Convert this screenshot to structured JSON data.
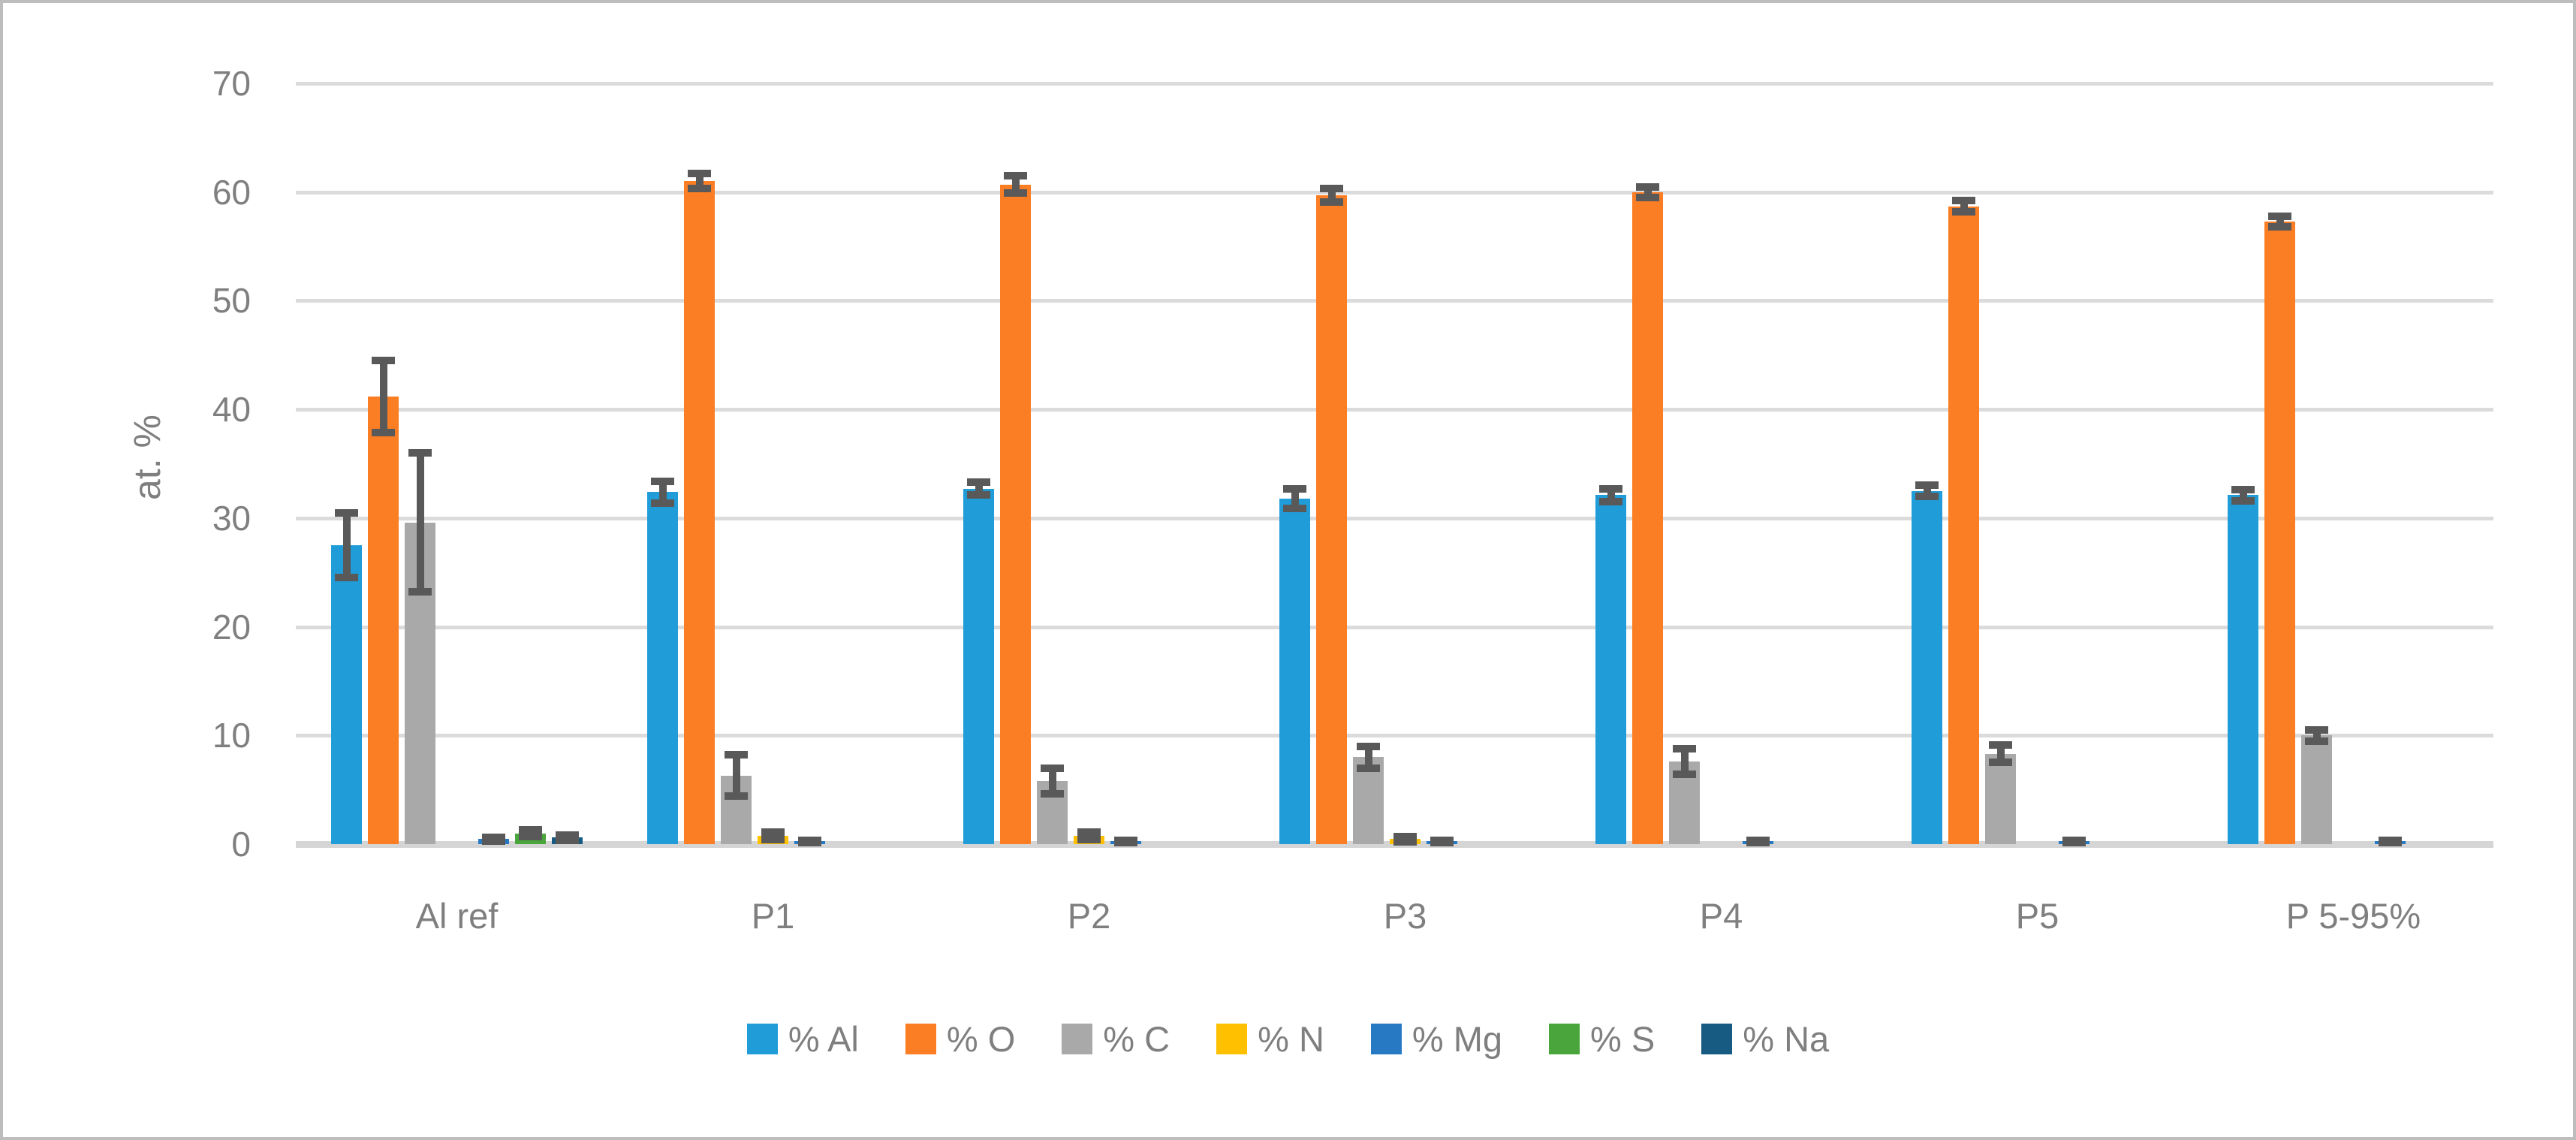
{
  "figure": {
    "background_color": "#FFFFFF",
    "border_color": "#BDBDBD"
  },
  "chart_data": {
    "type": "bar",
    "title": "",
    "xlabel": "",
    "ylabel": "at. %",
    "ylim": [
      0,
      70
    ],
    "yticks": [
      0,
      10,
      20,
      30,
      40,
      50,
      60,
      70
    ],
    "grid": true,
    "legend_position": "bottom",
    "axis_text_color": "#7F7F7F",
    "gridline_color": "#DBDBDB",
    "baseline_color": "#D5D5D5",
    "error_bar_color": "#595959",
    "categories": [
      "Al ref",
      "P1",
      "P2",
      "P3",
      "P4",
      "P5",
      "P 5-95%"
    ],
    "series": [
      {
        "name": "% Al",
        "color": "#209CD8",
        "values": [
          27.5,
          32.4,
          32.7,
          31.8,
          32.1,
          32.5,
          32.1
        ],
        "errors": [
          3.0,
          1.0,
          0.6,
          0.9,
          0.6,
          0.5,
          0.5
        ]
      },
      {
        "name": "% O",
        "color": "#FB7D24",
        "values": [
          41.2,
          61.0,
          60.7,
          59.7,
          60.0,
          58.7,
          57.3
        ],
        "errors": [
          3.3,
          0.7,
          0.8,
          0.6,
          0.5,
          0.5,
          0.5
        ]
      },
      {
        "name": "% C",
        "color": "#A9A9A9",
        "values": [
          29.6,
          6.3,
          5.8,
          8.0,
          7.6,
          8.3,
          10.0
        ],
        "errors": [
          6.4,
          1.9,
          1.2,
          1.0,
          1.2,
          0.8,
          0.5
        ]
      },
      {
        "name": "% N",
        "color": "#FFC000",
        "values": [
          0,
          0.75,
          0.75,
          0.45,
          0,
          0,
          0
        ],
        "errors": [
          0,
          0.35,
          0.35,
          0.25,
          0,
          0,
          0
        ]
      },
      {
        "name": "% Mg",
        "color": "#2779C4",
        "values": [
          0.45,
          0.25,
          0.25,
          0.25,
          0.25,
          0.25,
          0.25
        ],
        "errors": [
          0.2,
          0.1,
          0.1,
          0.1,
          0.1,
          0.1,
          0.1
        ]
      },
      {
        "name": "% S",
        "color": "#4AA53C",
        "values": [
          1.0,
          0,
          0,
          0,
          0,
          0,
          0
        ],
        "errors": [
          0.3,
          0,
          0,
          0,
          0,
          0,
          0
        ]
      },
      {
        "name": "% Na",
        "color": "#175A82",
        "values": [
          0.6,
          0,
          0,
          0,
          0,
          0,
          0
        ],
        "errors": [
          0.25,
          0,
          0,
          0,
          0,
          0,
          0
        ]
      }
    ]
  }
}
